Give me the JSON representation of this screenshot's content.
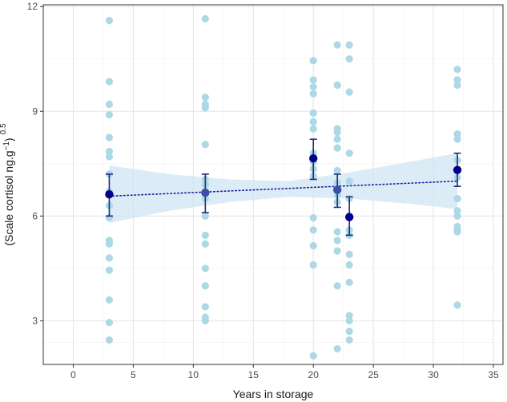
{
  "chart_data": {
    "type": "scatter",
    "xlabel": "Years in storage",
    "ylabel": {
      "text": "(Scale cortisol ng.g",
      "superscript": "−1",
      "close": ")",
      "exponent": "0.5"
    },
    "xlim": [
      -2.5,
      35.8
    ],
    "ylim": [
      1.75,
      12.05
    ],
    "x_ticks": [
      0,
      5,
      10,
      15,
      20,
      25,
      30,
      35
    ],
    "y_ticks": [
      3,
      6,
      9,
      12
    ],
    "x_tick_labels": [
      "0",
      "5",
      "10",
      "15",
      "20",
      "25",
      "30",
      "35"
    ],
    "y_tick_labels": [
      "3",
      "6",
      "9",
      "12"
    ],
    "grid": true,
    "colors": {
      "points": "#add8e6",
      "means": "#00008b",
      "means_secondary": "#3a4fa8",
      "errorbar": "#1f2d7a",
      "trend": "#1a1a9e",
      "ribbon": "#cfe6f3",
      "panel_border": "#333333",
      "grid_major": "#e6e6e6",
      "grid_minor": "#f2f2f2"
    },
    "observations": [
      {
        "x": 3,
        "y": 11.6
      },
      {
        "x": 3,
        "y": 9.85
      },
      {
        "x": 3,
        "y": 9.2
      },
      {
        "x": 3,
        "y": 8.9
      },
      {
        "x": 3,
        "y": 8.25
      },
      {
        "x": 3,
        "y": 7.85
      },
      {
        "x": 3,
        "y": 7.7
      },
      {
        "x": 3,
        "y": 7.2
      },
      {
        "x": 3,
        "y": 6.7
      },
      {
        "x": 3,
        "y": 6.3
      },
      {
        "x": 3,
        "y": 5.95
      },
      {
        "x": 3,
        "y": 5.3
      },
      {
        "x": 3,
        "y": 5.2
      },
      {
        "x": 3,
        "y": 4.8
      },
      {
        "x": 3,
        "y": 4.45
      },
      {
        "x": 3,
        "y": 3.6
      },
      {
        "x": 3,
        "y": 2.95
      },
      {
        "x": 3,
        "y": 2.45
      },
      {
        "x": 11,
        "y": 11.65
      },
      {
        "x": 11,
        "y": 9.4
      },
      {
        "x": 11,
        "y": 9.2
      },
      {
        "x": 11,
        "y": 9.1
      },
      {
        "x": 11,
        "y": 8.05
      },
      {
        "x": 11,
        "y": 7.05
      },
      {
        "x": 11,
        "y": 6.9
      },
      {
        "x": 11,
        "y": 6.5
      },
      {
        "x": 11,
        "y": 6.0
      },
      {
        "x": 11,
        "y": 5.45
      },
      {
        "x": 11,
        "y": 5.2
      },
      {
        "x": 11,
        "y": 4.5
      },
      {
        "x": 11,
        "y": 4.0
      },
      {
        "x": 11,
        "y": 3.4
      },
      {
        "x": 11,
        "y": 3.1
      },
      {
        "x": 11,
        "y": 3.0
      },
      {
        "x": 20,
        "y": 10.45
      },
      {
        "x": 20,
        "y": 9.9
      },
      {
        "x": 20,
        "y": 9.7
      },
      {
        "x": 20,
        "y": 9.5
      },
      {
        "x": 20,
        "y": 8.95
      },
      {
        "x": 20,
        "y": 8.7
      },
      {
        "x": 20,
        "y": 8.5
      },
      {
        "x": 20,
        "y": 7.8
      },
      {
        "x": 20,
        "y": 7.55
      },
      {
        "x": 20,
        "y": 7.35
      },
      {
        "x": 20,
        "y": 7.15
      },
      {
        "x": 20,
        "y": 5.95
      },
      {
        "x": 20,
        "y": 5.6
      },
      {
        "x": 20,
        "y": 5.15
      },
      {
        "x": 20,
        "y": 4.6
      },
      {
        "x": 20,
        "y": 2.0
      },
      {
        "x": 22,
        "y": 10.9
      },
      {
        "x": 22,
        "y": 9.75
      },
      {
        "x": 22,
        "y": 8.5
      },
      {
        "x": 22,
        "y": 8.4
      },
      {
        "x": 22,
        "y": 8.2
      },
      {
        "x": 22,
        "y": 7.95
      },
      {
        "x": 22,
        "y": 7.3
      },
      {
        "x": 22,
        "y": 6.95
      },
      {
        "x": 22,
        "y": 6.6
      },
      {
        "x": 22,
        "y": 6.4
      },
      {
        "x": 22,
        "y": 5.55
      },
      {
        "x": 22,
        "y": 5.3
      },
      {
        "x": 22,
        "y": 5.0
      },
      {
        "x": 22,
        "y": 4.0
      },
      {
        "x": 22,
        "y": 2.2
      },
      {
        "x": 23,
        "y": 10.9
      },
      {
        "x": 23,
        "y": 10.5
      },
      {
        "x": 23,
        "y": 9.55
      },
      {
        "x": 23,
        "y": 7.8
      },
      {
        "x": 23,
        "y": 7.0
      },
      {
        "x": 23,
        "y": 6.5
      },
      {
        "x": 23,
        "y": 6.0
      },
      {
        "x": 23,
        "y": 5.6
      },
      {
        "x": 23,
        "y": 5.45
      },
      {
        "x": 23,
        "y": 4.9
      },
      {
        "x": 23,
        "y": 4.6
      },
      {
        "x": 23,
        "y": 4.1
      },
      {
        "x": 23,
        "y": 3.15
      },
      {
        "x": 23,
        "y": 3.0
      },
      {
        "x": 23,
        "y": 2.7
      },
      {
        "x": 23,
        "y": 2.45
      },
      {
        "x": 32,
        "y": 10.2
      },
      {
        "x": 32,
        "y": 9.9
      },
      {
        "x": 32,
        "y": 9.75
      },
      {
        "x": 32,
        "y": 8.35
      },
      {
        "x": 32,
        "y": 8.2
      },
      {
        "x": 32,
        "y": 7.6
      },
      {
        "x": 32,
        "y": 7.1
      },
      {
        "x": 32,
        "y": 6.5
      },
      {
        "x": 32,
        "y": 6.15
      },
      {
        "x": 32,
        "y": 6.0
      },
      {
        "x": 32,
        "y": 5.7
      },
      {
        "x": 32,
        "y": 5.6
      },
      {
        "x": 32,
        "y": 5.55
      },
      {
        "x": 32,
        "y": 3.45
      }
    ],
    "group_means": [
      {
        "x": 3,
        "mean": 6.62,
        "lower": 6.0,
        "upper": 7.2,
        "emphasis": "dark"
      },
      {
        "x": 11,
        "mean": 6.67,
        "lower": 6.1,
        "upper": 7.2,
        "emphasis": "medium"
      },
      {
        "x": 20,
        "mean": 7.65,
        "lower": 7.05,
        "upper": 8.2,
        "emphasis": "dark"
      },
      {
        "x": 22,
        "mean": 6.75,
        "lower": 6.25,
        "upper": 7.2,
        "emphasis": "medium"
      },
      {
        "x": 23,
        "mean": 5.97,
        "lower": 5.45,
        "upper": 6.55,
        "emphasis": "dark"
      },
      {
        "x": 32,
        "mean": 7.32,
        "lower": 6.85,
        "upper": 7.8,
        "emphasis": "dark"
      }
    ],
    "trend_line": {
      "style": "dotted",
      "x": [
        3,
        32
      ],
      "y": [
        6.57,
        7.0
      ]
    },
    "confidence_band": [
      {
        "x": 3,
        "lower": 5.8,
        "upper": 7.45
      },
      {
        "x": 8,
        "lower": 6.15,
        "upper": 7.2
      },
      {
        "x": 13,
        "lower": 6.4,
        "upper": 7.05
      },
      {
        "x": 18,
        "lower": 6.55,
        "upper": 7.0
      },
      {
        "x": 23,
        "lower": 6.5,
        "upper": 7.25
      },
      {
        "x": 28,
        "lower": 6.35,
        "upper": 7.55
      },
      {
        "x": 32,
        "lower": 6.2,
        "upper": 7.8
      }
    ]
  }
}
